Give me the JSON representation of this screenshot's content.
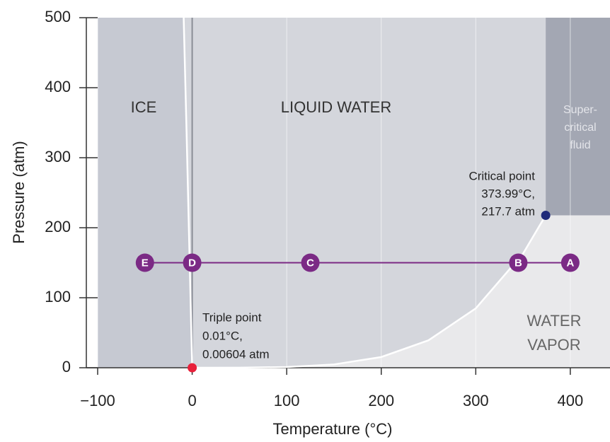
{
  "chart_data": {
    "type": "phase",
    "x_label": "Temperature (°C)",
    "y_label": "Pressure (atm)",
    "xlim": [
      -100,
      442
    ],
    "ylim": [
      0,
      500
    ],
    "xticks": [
      {
        "value": -100,
        "label": "−100"
      },
      0,
      100,
      200,
      300,
      400
    ],
    "yticks": [
      0,
      100,
      200,
      300,
      400,
      500
    ],
    "grid": "x",
    "curves": [
      {
        "color": "#ffffff",
        "x": [
          0.01,
          -3,
          -6,
          -9
        ],
        "values": [
          0.00604,
          170,
          340,
          500
        ]
      },
      {
        "color": "#ffffff",
        "x": [
          0.01,
          50,
          100,
          150,
          200,
          250,
          300,
          350,
          373.99
        ],
        "values": [
          0.00604,
          0.12,
          1,
          4.7,
          15.3,
          39.2,
          84.8,
          163,
          217.7
        ]
      }
    ],
    "reference_line_x": 0,
    "states": {
      "color": "#7b2a85",
      "labels": [
        "E",
        "D",
        "C",
        "B",
        "A"
      ],
      "x": [
        -50,
        0,
        125,
        345,
        400
      ],
      "values": [
        150,
        150,
        150,
        150,
        150
      ]
    },
    "triple_point": {
      "x": 0.01,
      "y": 0.00604,
      "color": "#e8203a",
      "label": [
        "Triple point",
        "0.01°C,",
        "0.00604 atm"
      ]
    },
    "critical_point": {
      "x": 373.99,
      "y": 217.7,
      "color": "#1f2a7a",
      "label": [
        "Critical point",
        "373.99°C,",
        "217.7 atm"
      ]
    },
    "region_labels": {
      "ice": "ICE",
      "liquid": "LIQUID WATER",
      "supercritical": [
        "Super-",
        "critical",
        "fluid"
      ],
      "vapor": [
        "WATER",
        "VAPOR"
      ]
    }
  }
}
